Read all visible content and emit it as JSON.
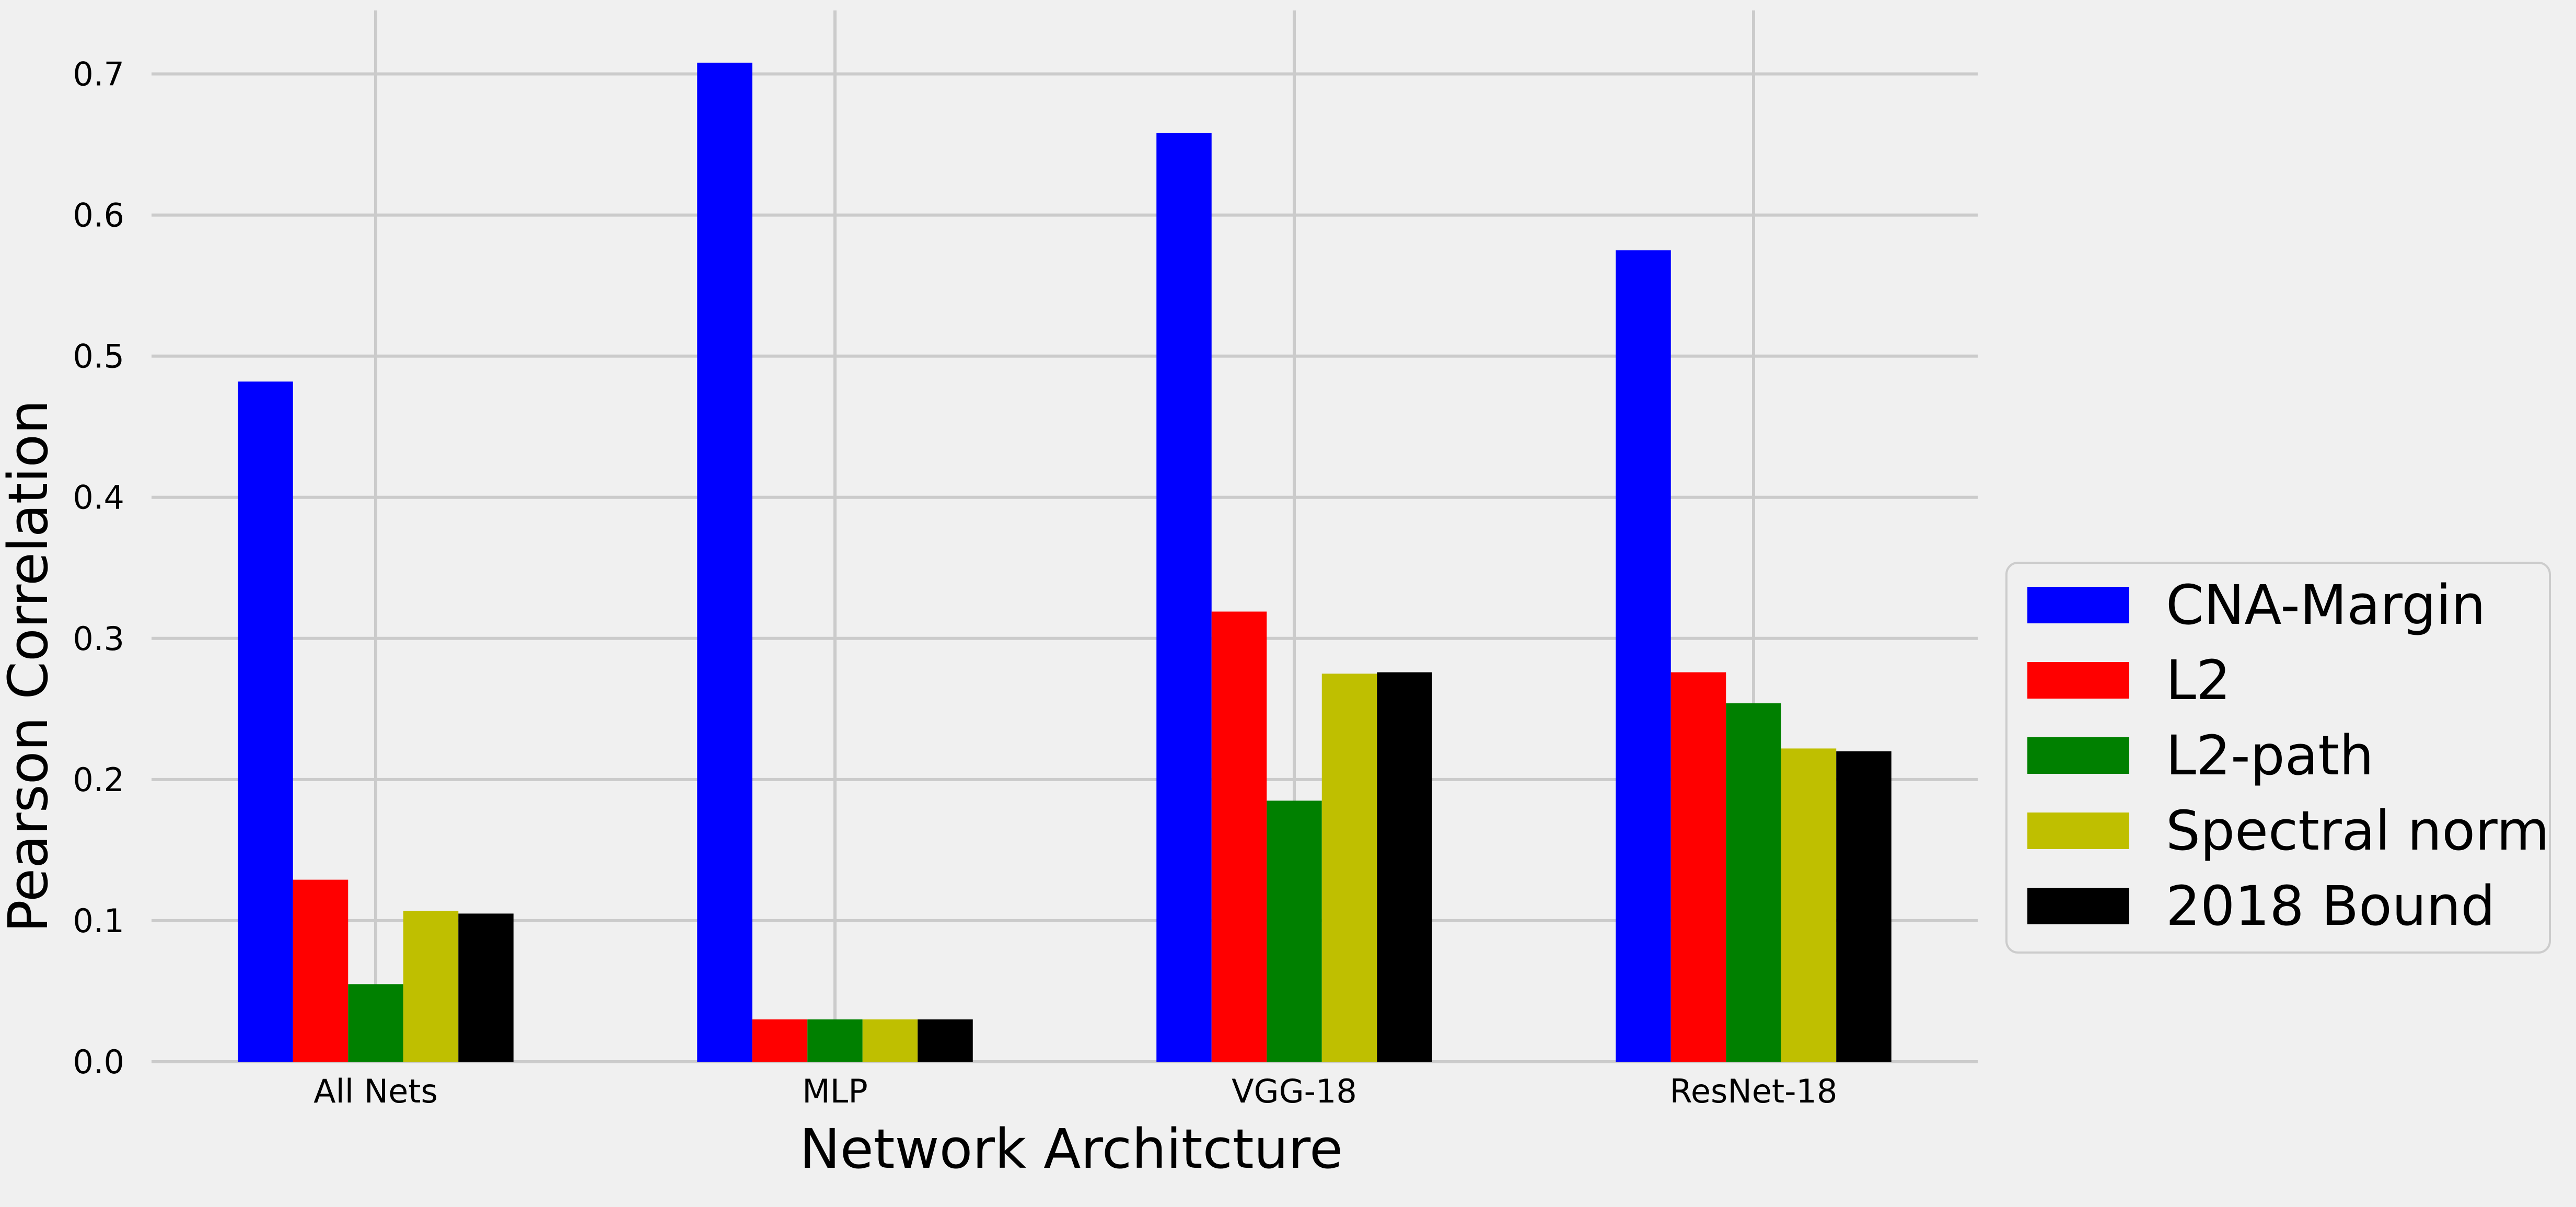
{
  "chart_data": {
    "type": "bar",
    "title": "",
    "xlabel": "Network Architcture",
    "ylabel": "Pearson Correlation",
    "categories": [
      "All Nets",
      "MLP",
      "VGG-18",
      "ResNet-18"
    ],
    "ylim": [
      0,
      0.745
    ],
    "yticks": [
      0.0,
      0.1,
      0.2,
      0.3,
      0.4,
      0.5,
      0.6,
      0.7
    ],
    "ytick_labels": [
      "0.0",
      "0.1",
      "0.2",
      "0.3",
      "0.4",
      "0.5",
      "0.6",
      "0.7"
    ],
    "grid": true,
    "legend_position": "center-right, outside plot",
    "series": [
      {
        "name": "CNA-Margin",
        "color": "#0000ff",
        "values": [
          0.482,
          0.708,
          0.658,
          0.575
        ]
      },
      {
        "name": "L2",
        "color": "#ff0000",
        "values": [
          0.129,
          0.03,
          0.319,
          0.276
        ]
      },
      {
        "name": "L2-path",
        "color": "#008000",
        "values": [
          0.055,
          0.03,
          0.185,
          0.254
        ]
      },
      {
        "name": "Spectral norm",
        "color": "#bfbf00",
        "values": [
          0.107,
          0.03,
          0.275,
          0.222
        ]
      },
      {
        "name": "2018 Bound",
        "color": "#000000",
        "values": [
          0.105,
          0.03,
          0.276,
          0.22
        ]
      }
    ]
  },
  "colors": {
    "background": "#f0f0f0",
    "grid": "#cbcbcb",
    "legend_background": "#f0f0f0",
    "legend_border": "#cccccc"
  }
}
